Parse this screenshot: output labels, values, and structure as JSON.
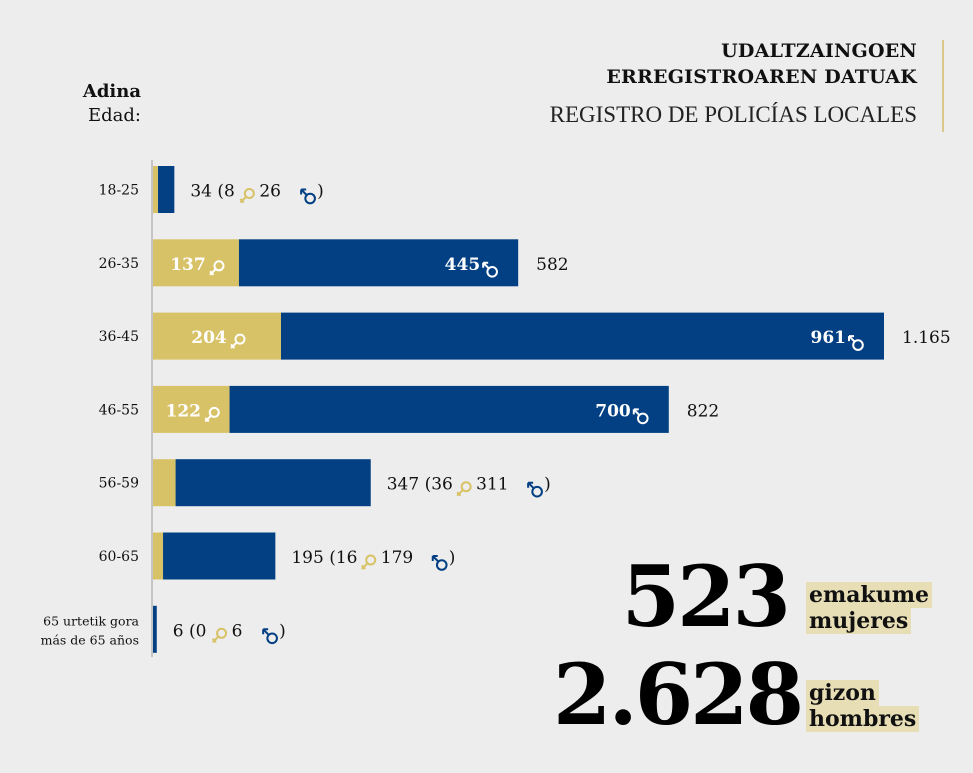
{
  "header": {
    "title_lines": [
      "UDALTZAINGOEN",
      "ERREGISTROAREN DATUAK"
    ],
    "subtitle": "REGISTRO DE POLICÍAS LOCALES"
  },
  "colors": {
    "female": "#d8c267",
    "male": "#023f83",
    "background": "#ededed",
    "axis": "#c4c4c4",
    "tag_bg": "#e8deb6"
  },
  "icons": {
    "female": "female-symbol",
    "male": "male-symbol"
  },
  "chart_data": {
    "type": "bar",
    "orientation": "horizontal",
    "stacked": true,
    "axis_title": [
      "Adina",
      "Edad:"
    ],
    "categories": [
      {
        "label": [
          "18-25"
        ]
      },
      {
        "label": [
          "26-35"
        ]
      },
      {
        "label": [
          "36-45"
        ]
      },
      {
        "label": [
          "46-55"
        ]
      },
      {
        "label": [
          "56-59"
        ]
      },
      {
        "label": [
          "60-65"
        ]
      },
      {
        "label": [
          "65 urtetik gora",
          "más de 65 años"
        ]
      }
    ],
    "series": [
      {
        "name": "emakume / mujeres",
        "key": "female",
        "values": [
          8,
          137,
          204,
          122,
          36,
          16,
          0
        ]
      },
      {
        "name": "gizon / hombres",
        "key": "male",
        "values": [
          26,
          445,
          961,
          700,
          311,
          179,
          6
        ]
      }
    ],
    "totals": [
      34,
      582,
      1165,
      822,
      347,
      195,
      6
    ],
    "data_labels": [
      {
        "mode": "outside",
        "text": "34 (8♀ 26♂)"
      },
      {
        "mode": "inside",
        "female": "137",
        "male": "445",
        "total": "582"
      },
      {
        "mode": "inside",
        "female": "204",
        "male": "961",
        "total": "1.165"
      },
      {
        "mode": "inside",
        "female": "122",
        "male": "700",
        "total": "822"
      },
      {
        "mode": "outside",
        "text": "347 (36♀ 311 ♂)"
      },
      {
        "mode": "outside",
        "text": "195 (16♀ 179♂)"
      },
      {
        "mode": "outside",
        "text": "6  (0♀ 6 ♂)"
      }
    ],
    "xlim": [
      0,
      1165
    ],
    "grid": false,
    "legend": "none"
  },
  "summary": {
    "female": {
      "value": "523",
      "tag": [
        "emakume",
        "mujeres"
      ]
    },
    "male": {
      "value": "2.628",
      "tag": [
        "gizon",
        "hombres"
      ]
    }
  }
}
